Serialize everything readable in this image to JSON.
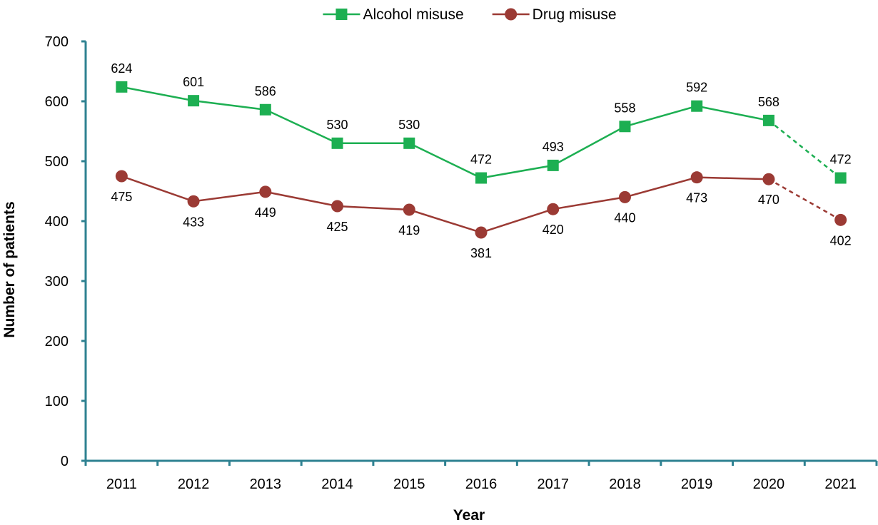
{
  "chart_data": {
    "type": "line",
    "title": "",
    "xlabel": "Year",
    "ylabel": "Number of patients",
    "categories": [
      "2011",
      "2012",
      "2013",
      "2014",
      "2015",
      "2016",
      "2017",
      "2018",
      "2019",
      "2020",
      "2021"
    ],
    "ylim": [
      0,
      700
    ],
    "yticks": [
      0,
      100,
      200,
      300,
      400,
      500,
      600,
      700
    ],
    "grid": false,
    "legend_position": "top-center",
    "dashed_last_segment": true,
    "series": [
      {
        "name": "Alcohol misuse",
        "values": [
          624,
          601,
          586,
          530,
          530,
          472,
          493,
          558,
          592,
          568,
          472
        ],
        "color": "#1DAF52",
        "marker": "square",
        "label_position": "above"
      },
      {
        "name": "Drug misuse",
        "values": [
          475,
          433,
          449,
          425,
          419,
          381,
          420,
          440,
          473,
          470,
          402
        ],
        "color": "#9B3A34",
        "marker": "circle",
        "label_position": "below"
      }
    ]
  }
}
